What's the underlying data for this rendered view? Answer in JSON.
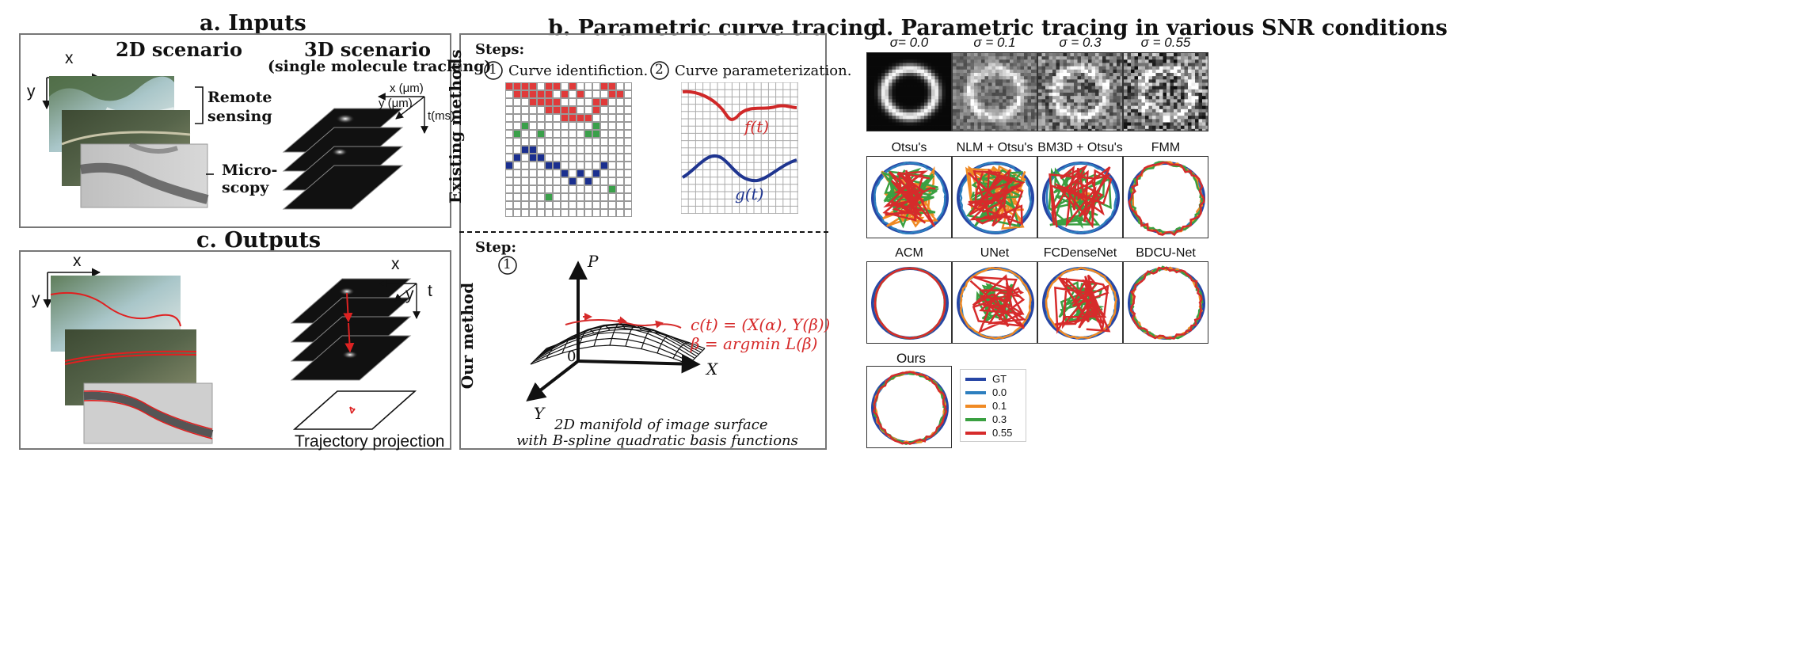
{
  "panel_a": {
    "title": "a. Inputs",
    "scenario_2d": "2D scenario",
    "scenario_3d": "3D scenario",
    "scenario_3d_sub": "(single molecule tracking)",
    "axis_x": "x",
    "axis_y": "y",
    "remote": "Remote",
    "sensing": "sensing",
    "micro": "Micro-",
    "scopy": "scopy",
    "x_um": "x (μm)",
    "y_um": "y (μm)",
    "t_ms": "t(ms)"
  },
  "panel_b": {
    "title": "b. Parametric curve tracing",
    "steps": "Steps:",
    "step1_num": "1",
    "step1": "Curve identifiction.",
    "step2_num": "2",
    "step2": "Curve parameterization.",
    "existing": "Existing methods",
    "ft": "f(t)",
    "gt": "g(t)",
    "step": "Step:",
    "our_method": "Our method",
    "axis_p": "P",
    "axis_x": "X",
    "axis_y": "Y",
    "origin": "0",
    "eq1": "c(t) = (X(α), Y(β))",
    "eq2": "β = argmin L(β)",
    "caption1": "2D manifold of image surface",
    "caption2": "with B-spline quadratic basis functions"
  },
  "panel_c": {
    "title": "c. Outputs",
    "axis_x": "x",
    "axis_y": "y",
    "axis_x3": "x",
    "axis_y3": "y",
    "axis_t": "t",
    "traj": "Trajectory projection"
  },
  "panel_d": {
    "title": "d. Parametric tracing in various SNR conditions",
    "sigmas": [
      "σ= 0.0",
      "σ = 0.1",
      "σ = 0.3",
      "σ = 0.55"
    ],
    "row2": [
      "Otsu's",
      "NLM +  Otsu's",
      "BM3D +  Otsu's",
      "FMM"
    ],
    "row3": [
      "ACM",
      "UNet",
      "FCDenseNet",
      "BDCU-Net"
    ],
    "ours": "Ours",
    "legend": [
      {
        "label": "GT",
        "color": "#2746a5"
      },
      {
        "label": "0.0",
        "color": "#2d7fbf"
      },
      {
        "label": "0.1",
        "color": "#f08a24"
      },
      {
        "label": "0.3",
        "color": "#3aa041"
      },
      {
        "label": "0.55",
        "color": "#d62b2b"
      }
    ]
  },
  "colors": {
    "red_cell": "#e03a3a",
    "blue_cell": "#1a2f8f",
    "green_cell": "#3aa04a",
    "ft_curve": "#d02828",
    "gt_curve": "#1f3590"
  }
}
